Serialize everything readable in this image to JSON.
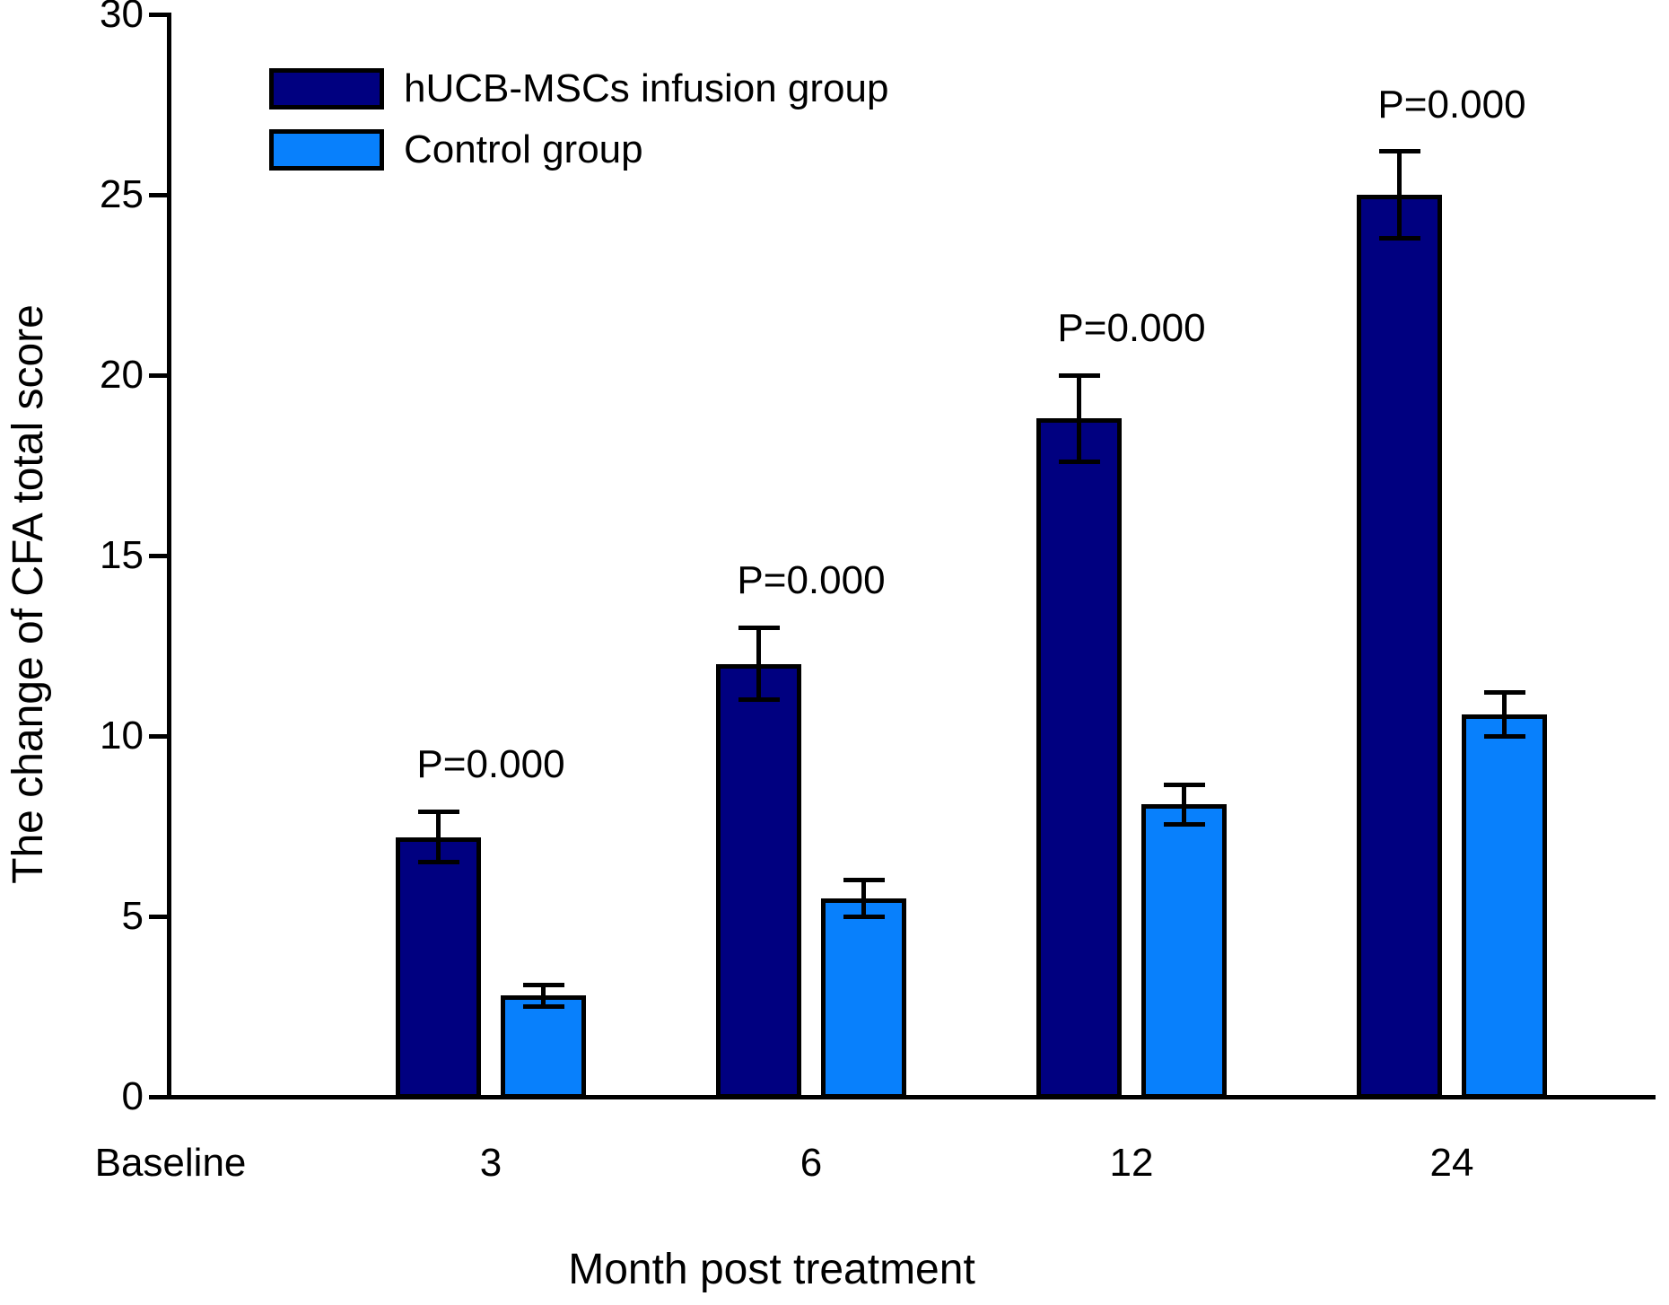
{
  "chart_data": {
    "type": "bar",
    "title": "",
    "xlabel": "Month post treatment",
    "ylabel": "The change of CFA total score",
    "categories": [
      "Baseline",
      "3",
      "6",
      "12",
      "24"
    ],
    "series": [
      {
        "name": "hUCB-MSCs infusion group",
        "color": "#000080",
        "values": [
          null,
          7.2,
          12,
          18.8,
          25
        ],
        "errors": [
          null,
          0.7,
          1.0,
          1.2,
          1.2
        ]
      },
      {
        "name": "Control group",
        "color": "#0880FC",
        "values": [
          null,
          2.8,
          5.5,
          8.1,
          10.6
        ],
        "errors": [
          null,
          0.3,
          0.5,
          0.55,
          0.6
        ]
      }
    ],
    "annotations": [
      {
        "text": "P=0.000",
        "category_index": 1
      },
      {
        "text": "P=0.000",
        "category_index": 2
      },
      {
        "text": "P=0.000",
        "category_index": 3
      },
      {
        "text": "P=0.000",
        "category_index": 4
      }
    ],
    "ylim": [
      0,
      30
    ],
    "yticks": [
      0,
      5,
      10,
      15,
      20,
      25,
      30
    ],
    "grid": false,
    "legend_position": "top-left",
    "axis_color": "#000000",
    "bar_edge_color": "#000000"
  }
}
